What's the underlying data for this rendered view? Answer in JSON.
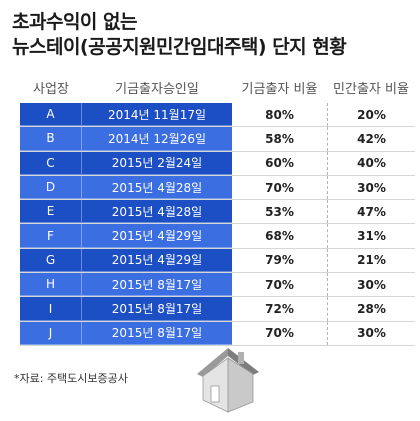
{
  "title": {
    "line1": "초과수익이 없는",
    "line2": "뉴스테이(공공지원민간임대주택) 단지 현황"
  },
  "columns": {
    "site": "사업장",
    "date": "기금출자승인일",
    "public_ratio": "기금출자 비율",
    "private_ratio": "민간출자 비율"
  },
  "rows": [
    {
      "site": "A",
      "date": "2014년 11월17일",
      "public": "80%",
      "private": "20%"
    },
    {
      "site": "B",
      "date": "2014년 12월26일",
      "public": "58%",
      "private": "42%"
    },
    {
      "site": "C",
      "date": "2015년 2월24일",
      "public": "60%",
      "private": "40%"
    },
    {
      "site": "D",
      "date": "2015년 4월28일",
      "public": "70%",
      "private": "30%"
    },
    {
      "site": "E",
      "date": "2015년 4월28일",
      "public": "53%",
      "private": "47%"
    },
    {
      "site": "F",
      "date": "2015년 4월29일",
      "public": "68%",
      "private": "31%"
    },
    {
      "site": "G",
      "date": "2015년 4월29일",
      "public": "79%",
      "private": "21%"
    },
    {
      "site": "H",
      "date": "2015년 8월17일",
      "public": "70%",
      "private": "30%"
    },
    {
      "site": "I",
      "date": "2015년 8월17일",
      "public": "72%",
      "private": "28%"
    },
    {
      "site": "J",
      "date": "2015년 8월17일",
      "public": "70%",
      "private": "30%"
    }
  ],
  "source": "*자료: 주택도시보증공사",
  "colors": {
    "row_dark": "#1c4fc4",
    "row_light": "#3b6ee0"
  },
  "icons": [
    "house-icon"
  ]
}
